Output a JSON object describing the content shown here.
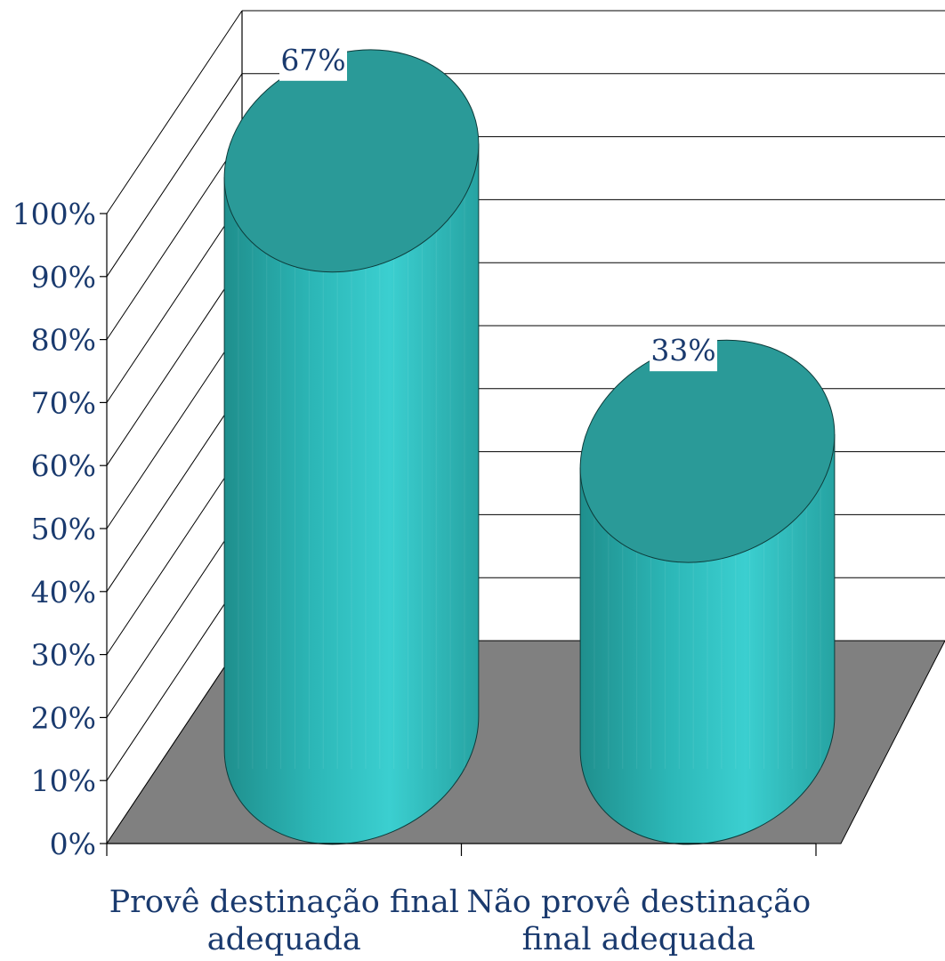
{
  "chart_data": {
    "type": "bar",
    "style": "3d-cylinder",
    "categories": [
      [
        "Provê destinação final",
        "adequada"
      ],
      [
        "Não provê destinação",
        "final adequada"
      ]
    ],
    "values": [
      67,
      33
    ],
    "data_labels": [
      "67%",
      "33%"
    ],
    "y_ticks": [
      "0%",
      "10%",
      "20%",
      "30%",
      "40%",
      "50%",
      "60%",
      "70%",
      "80%",
      "90%",
      "100%"
    ],
    "ylim": [
      0,
      100
    ],
    "grid": true,
    "legend": "none",
    "colors": {
      "bar_top": "#2a9a98",
      "bar_side_dark": "#1f8f8d",
      "bar_side_light": "#3bcfd0",
      "floor": "#808080",
      "text": "#1a3a6e",
      "grid": "#000000",
      "label_bg": "#ffffff"
    }
  }
}
